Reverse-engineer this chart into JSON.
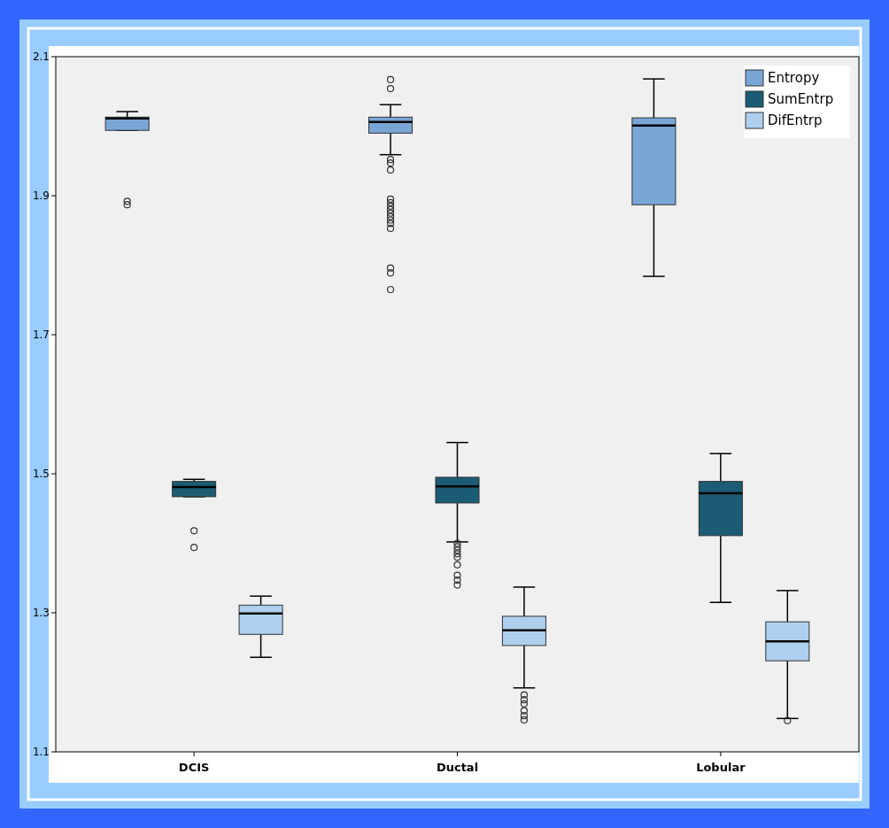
{
  "chart_data": {
    "type": "box",
    "categories": [
      "DCIS",
      "Ductal",
      "Lobular"
    ],
    "ylim": [
      1.1,
      2.1
    ],
    "yticks": [
      1.1,
      1.3,
      1.5,
      1.7,
      1.9,
      2.1
    ],
    "grid": false,
    "legend": "top right",
    "series": [
      {
        "name": "Entropy",
        "color": "#7aa6d6",
        "boxes": [
          {
            "low": 1.994,
            "q1": 1.994,
            "median": 2.011,
            "q3": 2.013,
            "high": 2.021,
            "outliers": [
              1.892,
              1.887
            ]
          },
          {
            "low": 1.959,
            "q1": 1.99,
            "median": 2.006,
            "q3": 2.013,
            "high": 2.031,
            "outliers": [
              2.067,
              2.054,
              1.952,
              1.947,
              1.937,
              1.895,
              1.89,
              1.885,
              1.88,
              1.875,
              1.87,
              1.865,
              1.86,
              1.853,
              1.796,
              1.789,
              1.765
            ]
          },
          {
            "low": 1.784,
            "q1": 1.887,
            "median": 2.001,
            "q3": 2.012,
            "high": 2.068
          }
        ]
      },
      {
        "name": "SumEntrp",
        "color": "#1b5c74",
        "boxes": [
          {
            "low": 1.467,
            "q1": 1.467,
            "median": 1.481,
            "q3": 1.489,
            "high": 1.492,
            "outliers": [
              1.418,
              1.394
            ]
          },
          {
            "low": 1.402,
            "q1": 1.458,
            "median": 1.482,
            "q3": 1.495,
            "high": 1.545,
            "outliers": [
              1.4,
              1.395,
              1.39,
              1.385,
              1.38,
              1.369,
              1.354,
              1.347,
              1.34
            ]
          },
          {
            "low": 1.315,
            "q1": 1.411,
            "median": 1.472,
            "q3": 1.489,
            "high": 1.529
          }
        ]
      },
      {
        "name": "DifEntrp",
        "color": "#aed0ee",
        "boxes": [
          {
            "low": 1.236,
            "q1": 1.269,
            "median": 1.299,
            "q3": 1.311,
            "high": 1.324
          },
          {
            "low": 1.192,
            "q1": 1.253,
            "median": 1.275,
            "q3": 1.295,
            "high": 1.337,
            "outliers": [
              1.182,
              1.175,
              1.169,
              1.159,
              1.152,
              1.146
            ]
          },
          {
            "low": 1.148,
            "q1": 1.231,
            "median": 1.259,
            "q3": 1.287,
            "high": 1.332,
            "outliers": [
              1.145
            ]
          }
        ]
      }
    ]
  }
}
